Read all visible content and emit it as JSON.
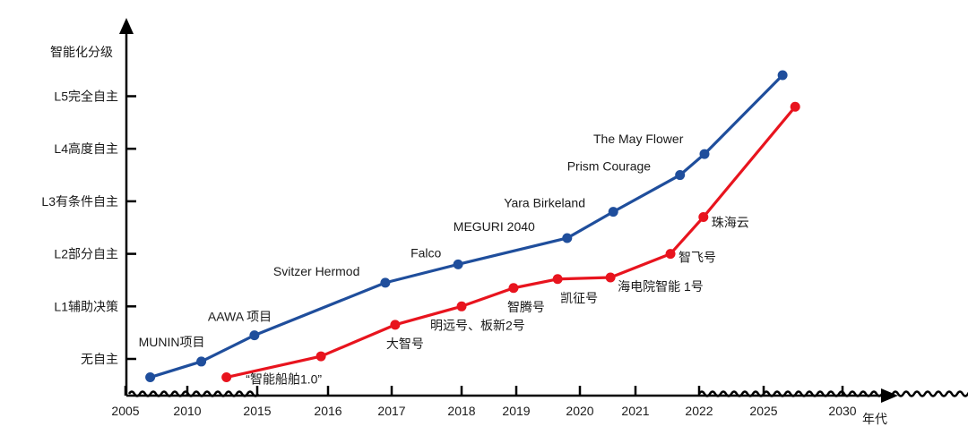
{
  "chart_data": {
    "type": "line",
    "ylabel": "智能化分级",
    "xlabel": "年代",
    "y_levels": [
      "无自主",
      "L1辅助决策",
      "L2部分自主",
      "L3有条件自主",
      "L4高度自主",
      "L5完全自主"
    ],
    "x_ticks": [
      "2005",
      "2010",
      "2015",
      "2016",
      "2017",
      "2018",
      "2019",
      "2020",
      "2021",
      "2022",
      "2025",
      "2030"
    ],
    "series": [
      {
        "color": "#1f4e9c",
        "points": [
          {
            "x": 2007.0,
            "y": -0.35,
            "label": ""
          },
          {
            "x": 2011.0,
            "y": -0.05,
            "label": "MUNIN项目"
          },
          {
            "x": 2014.8,
            "y": 0.45,
            "label": "AAWA 项目"
          },
          {
            "x": 2016.9,
            "y": 1.45,
            "label": "Svitzer Hermod"
          },
          {
            "x": 2017.95,
            "y": 1.8,
            "label": "Falco"
          },
          {
            "x": 2019.8,
            "y": 2.3,
            "label": "MEGURI 2040"
          },
          {
            "x": 2020.6,
            "y": 2.8,
            "label": "Yara Birkeland"
          },
          {
            "x": 2021.7,
            "y": 3.5,
            "label": "Prism Courage"
          },
          {
            "x": 2022.25,
            "y": 3.9,
            "label": "The May  Flower"
          },
          {
            "x": 2026.2,
            "y": 5.4,
            "label": ""
          }
        ]
      },
      {
        "color": "#e8141e",
        "points": [
          {
            "x": 2012.8,
            "y": -0.35,
            "label": "“智能船舶1.0”"
          },
          {
            "x": 2015.9,
            "y": 0.05,
            "label": ""
          },
          {
            "x": 2017.05,
            "y": 0.65,
            "label": "大智号"
          },
          {
            "x": 2018.0,
            "y": 1.0,
            "label": "明远号、板新2号"
          },
          {
            "x": 2018.95,
            "y": 1.35,
            "label": "智腾号"
          },
          {
            "x": 2019.65,
            "y": 1.52,
            "label": "凯征号"
          },
          {
            "x": 2020.55,
            "y": 1.55,
            "label": "海电院智能 1号"
          },
          {
            "x": 2021.55,
            "y": 2.0,
            "label": "智飞号"
          },
          {
            "x": 2022.2,
            "y": 2.7,
            "label": "珠海云"
          },
          {
            "x": 2027.0,
            "y": 4.8,
            "label": ""
          }
        ]
      }
    ]
  }
}
